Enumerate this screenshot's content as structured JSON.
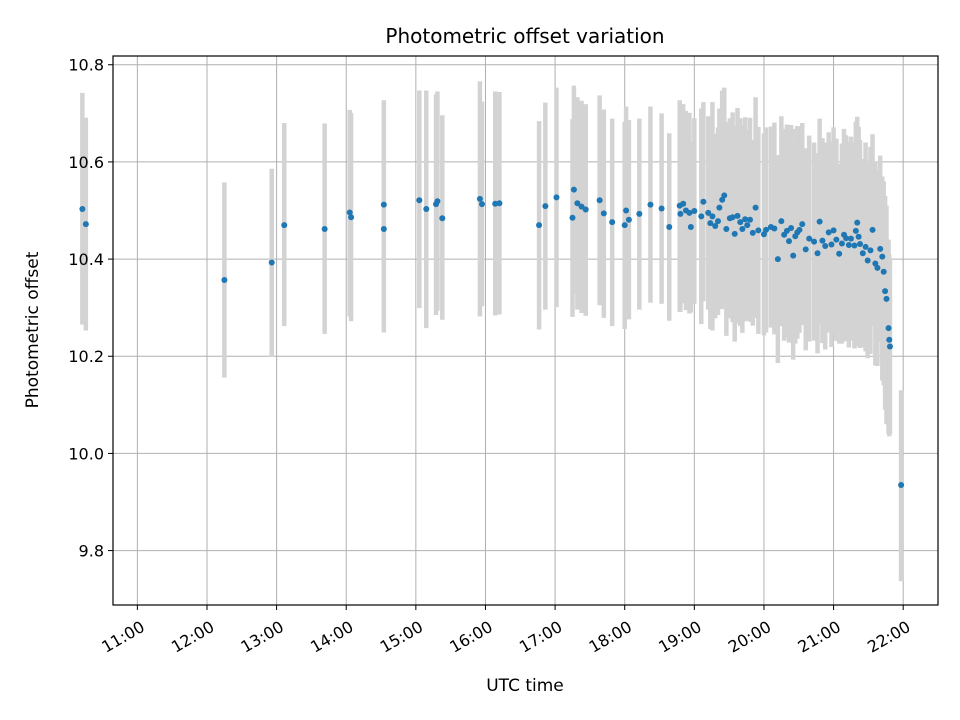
{
  "chart_data": {
    "type": "scatter",
    "title": "Photometric offset variation",
    "xlabel": "UTC time",
    "ylabel": "Photometric offset",
    "x_unit": "hours UTC",
    "xlim": [
      10.65,
      22.5
    ],
    "ylim": [
      9.688,
      10.818
    ],
    "grid": true,
    "x_ticks": [
      {
        "value": 11,
        "label": "11:00"
      },
      {
        "value": 12,
        "label": "12:00"
      },
      {
        "value": 13,
        "label": "13:00"
      },
      {
        "value": 14,
        "label": "14:00"
      },
      {
        "value": 15,
        "label": "15:00"
      },
      {
        "value": 16,
        "label": "16:00"
      },
      {
        "value": 17,
        "label": "17:00"
      },
      {
        "value": 18,
        "label": "18:00"
      },
      {
        "value": 19,
        "label": "19:00"
      },
      {
        "value": 20,
        "label": "20:00"
      },
      {
        "value": 21,
        "label": "21:00"
      },
      {
        "value": 22,
        "label": "22:00"
      }
    ],
    "y_ticks": [
      {
        "value": 9.8,
        "label": "9.8"
      },
      {
        "value": 10.0,
        "label": "10.0"
      },
      {
        "value": 10.2,
        "label": "10.2"
      },
      {
        "value": 10.4,
        "label": "10.4"
      },
      {
        "value": 10.6,
        "label": "10.6"
      },
      {
        "value": 10.8,
        "label": "10.8"
      }
    ],
    "marker_color": "#1f77b4",
    "errorbar_color": "#d3d3d3",
    "points": [
      [
        10.21,
        10.503,
        10.265,
        10.742
      ],
      [
        10.26,
        10.472,
        10.253,
        10.691
      ],
      [
        12.25,
        10.357,
        10.156,
        10.558
      ],
      [
        12.93,
        10.393,
        10.199,
        10.586
      ],
      [
        13.11,
        10.47,
        10.262,
        10.68
      ],
      [
        13.69,
        10.462,
        10.246,
        10.679
      ],
      [
        14.05,
        10.496,
        10.282,
        10.707
      ],
      [
        14.07,
        10.486,
        10.272,
        10.701
      ],
      [
        14.54,
        10.512,
        10.298,
        10.727
      ],
      [
        14.54,
        10.462,
        10.249,
        10.676
      ],
      [
        15.05,
        10.521,
        10.299,
        10.747
      ],
      [
        15.15,
        10.503,
        10.258,
        10.747
      ],
      [
        15.29,
        10.513,
        10.285,
        10.739
      ],
      [
        15.31,
        10.519,
        10.294,
        10.745
      ],
      [
        15.38,
        10.484,
        10.275,
        10.696
      ],
      [
        15.92,
        10.524,
        10.282,
        10.766
      ],
      [
        15.95,
        10.513,
        10.303,
        10.724
      ],
      [
        16.14,
        10.514,
        10.284,
        10.745
      ],
      [
        16.2,
        10.515,
        10.286,
        10.744
      ],
      [
        16.77,
        10.47,
        10.255,
        10.684
      ],
      [
        16.86,
        10.509,
        10.296,
        10.722
      ],
      [
        17.02,
        10.527,
        10.301,
        10.753
      ],
      [
        17.25,
        10.485,
        10.281,
        10.688
      ],
      [
        17.27,
        10.543,
        10.328,
        10.757
      ],
      [
        17.32,
        10.515,
        10.296,
        10.733
      ],
      [
        17.38,
        10.508,
        10.289,
        10.726
      ],
      [
        17.44,
        10.502,
        10.283,
        10.719
      ],
      [
        17.64,
        10.521,
        10.305,
        10.737
      ],
      [
        17.7,
        10.494,
        10.279,
        10.708
      ],
      [
        17.82,
        10.476,
        10.262,
        10.689
      ],
      [
        18.0,
        10.47,
        10.256,
        10.683
      ],
      [
        18.02,
        10.5,
        10.286,
        10.714
      ],
      [
        18.06,
        10.481,
        10.276,
        10.686
      ],
      [
        18.21,
        10.493,
        10.296,
        10.689
      ],
      [
        18.37,
        10.512,
        10.31,
        10.714
      ],
      [
        18.53,
        10.504,
        10.308,
        10.7
      ],
      [
        18.64,
        10.466,
        10.273,
        10.659
      ],
      [
        18.79,
        10.51,
        10.292,
        10.727
      ],
      [
        18.8,
        10.493,
        10.291,
        10.695
      ],
      [
        18.84,
        10.514,
        10.309,
        10.719
      ],
      [
        18.88,
        10.5,
        10.295,
        10.705
      ],
      [
        18.93,
        10.495,
        10.288,
        10.701
      ],
      [
        18.95,
        10.466,
        10.29,
        10.642
      ],
      [
        19.0,
        10.499,
        10.308,
        10.69
      ],
      [
        19.1,
        10.488,
        10.266,
        10.71
      ],
      [
        19.13,
        10.518,
        10.313,
        10.723
      ],
      [
        19.2,
        10.495,
        10.296,
        10.694
      ],
      [
        19.23,
        10.474,
        10.256,
        10.692
      ],
      [
        19.26,
        10.488,
        10.253,
        10.723
      ],
      [
        19.3,
        10.468,
        10.278,
        10.658
      ],
      [
        19.34,
        10.478,
        10.285,
        10.671
      ],
      [
        19.36,
        10.506,
        10.303,
        10.71
      ],
      [
        19.4,
        10.522,
        10.297,
        10.747
      ],
      [
        19.43,
        10.531,
        10.309,
        10.753
      ],
      [
        19.46,
        10.462,
        10.242,
        10.682
      ],
      [
        19.51,
        10.484,
        10.278,
        10.69
      ],
      [
        19.55,
        10.486,
        10.27,
        10.702
      ],
      [
        19.58,
        10.452,
        10.23,
        10.674
      ],
      [
        19.62,
        10.489,
        10.267,
        10.711
      ],
      [
        19.66,
        10.476,
        10.262,
        10.69
      ],
      [
        19.69,
        10.462,
        10.248,
        10.676
      ],
      [
        19.73,
        10.482,
        10.272,
        10.692
      ],
      [
        19.76,
        10.47,
        10.275,
        10.665
      ],
      [
        19.8,
        10.481,
        10.271,
        10.691
      ],
      [
        19.84,
        10.454,
        10.263,
        10.645
      ],
      [
        19.88,
        10.506,
        10.279,
        10.733
      ],
      [
        19.92,
        10.459,
        10.246,
        10.672
      ],
      [
        20.0,
        10.451,
        10.243,
        10.659
      ],
      [
        20.03,
        10.46,
        10.249,
        10.671
      ],
      [
        20.1,
        10.466,
        10.259,
        10.673
      ],
      [
        20.15,
        10.463,
        10.245,
        10.681
      ],
      [
        20.2,
        10.4,
        10.186,
        10.614
      ],
      [
        20.25,
        10.478,
        10.262,
        10.694
      ],
      [
        20.29,
        10.45,
        10.232,
        10.668
      ],
      [
        20.33,
        10.458,
        10.239,
        10.677
      ],
      [
        20.36,
        10.437,
        10.228,
        10.646
      ],
      [
        20.39,
        10.464,
        10.252,
        10.676
      ],
      [
        20.42,
        10.407,
        10.193,
        10.621
      ],
      [
        20.45,
        10.447,
        10.226,
        10.668
      ],
      [
        20.48,
        10.455,
        10.236,
        10.674
      ],
      [
        20.51,
        10.46,
        10.248,
        10.672
      ],
      [
        20.55,
        10.472,
        10.264,
        10.68
      ],
      [
        20.6,
        10.42,
        10.212,
        10.628
      ],
      [
        20.65,
        10.442,
        10.23,
        10.654
      ],
      [
        20.72,
        10.436,
        10.232,
        10.64
      ],
      [
        20.77,
        10.412,
        10.206,
        10.618
      ],
      [
        20.8,
        10.477,
        10.265,
        10.689
      ],
      [
        20.84,
        10.438,
        10.227,
        10.649
      ],
      [
        20.88,
        10.427,
        10.214,
        10.64
      ],
      [
        20.93,
        10.455,
        10.249,
        10.661
      ],
      [
        20.97,
        10.43,
        10.219,
        10.641
      ],
      [
        21.0,
        10.459,
        10.247,
        10.671
      ],
      [
        21.04,
        10.44,
        10.232,
        10.648
      ],
      [
        21.08,
        10.411,
        10.226,
        10.596
      ],
      [
        21.12,
        10.432,
        10.226,
        10.638
      ],
      [
        21.15,
        10.45,
        10.232,
        10.668
      ],
      [
        21.18,
        10.443,
        10.231,
        10.655
      ],
      [
        21.22,
        10.429,
        10.218,
        10.64
      ],
      [
        21.25,
        10.442,
        10.232,
        10.652
      ],
      [
        21.3,
        10.428,
        10.216,
        10.64
      ],
      [
        21.32,
        10.458,
        10.233,
        10.683
      ],
      [
        21.34,
        10.475,
        10.257,
        10.693
      ],
      [
        21.36,
        10.446,
        10.22,
        10.672
      ],
      [
        21.38,
        10.431,
        10.217,
        10.645
      ],
      [
        21.42,
        10.412,
        10.218,
        10.606
      ],
      [
        21.46,
        10.425,
        10.21,
        10.64
      ],
      [
        21.49,
        10.397,
        10.196,
        10.598
      ],
      [
        21.53,
        10.418,
        10.205,
        10.631
      ],
      [
        21.56,
        10.46,
        10.263,
        10.657
      ],
      [
        21.6,
        10.391,
        10.181,
        10.601
      ],
      [
        21.63,
        10.382,
        10.18,
        10.584
      ],
      [
        21.67,
        10.421,
        10.229,
        10.613
      ],
      [
        21.7,
        10.405,
        10.15,
        10.57
      ],
      [
        21.72,
        10.374,
        10.14,
        10.56
      ],
      [
        21.74,
        10.334,
        10.09,
        10.53
      ],
      [
        21.76,
        10.318,
        10.06,
        10.51
      ],
      [
        21.79,
        10.258,
        10.04,
        10.44
      ],
      [
        21.8,
        10.234,
        10.035,
        10.41
      ],
      [
        21.81,
        10.22,
        10.04,
        10.4
      ],
      [
        21.97,
        9.935,
        9.737,
        10.13
      ]
    ]
  }
}
